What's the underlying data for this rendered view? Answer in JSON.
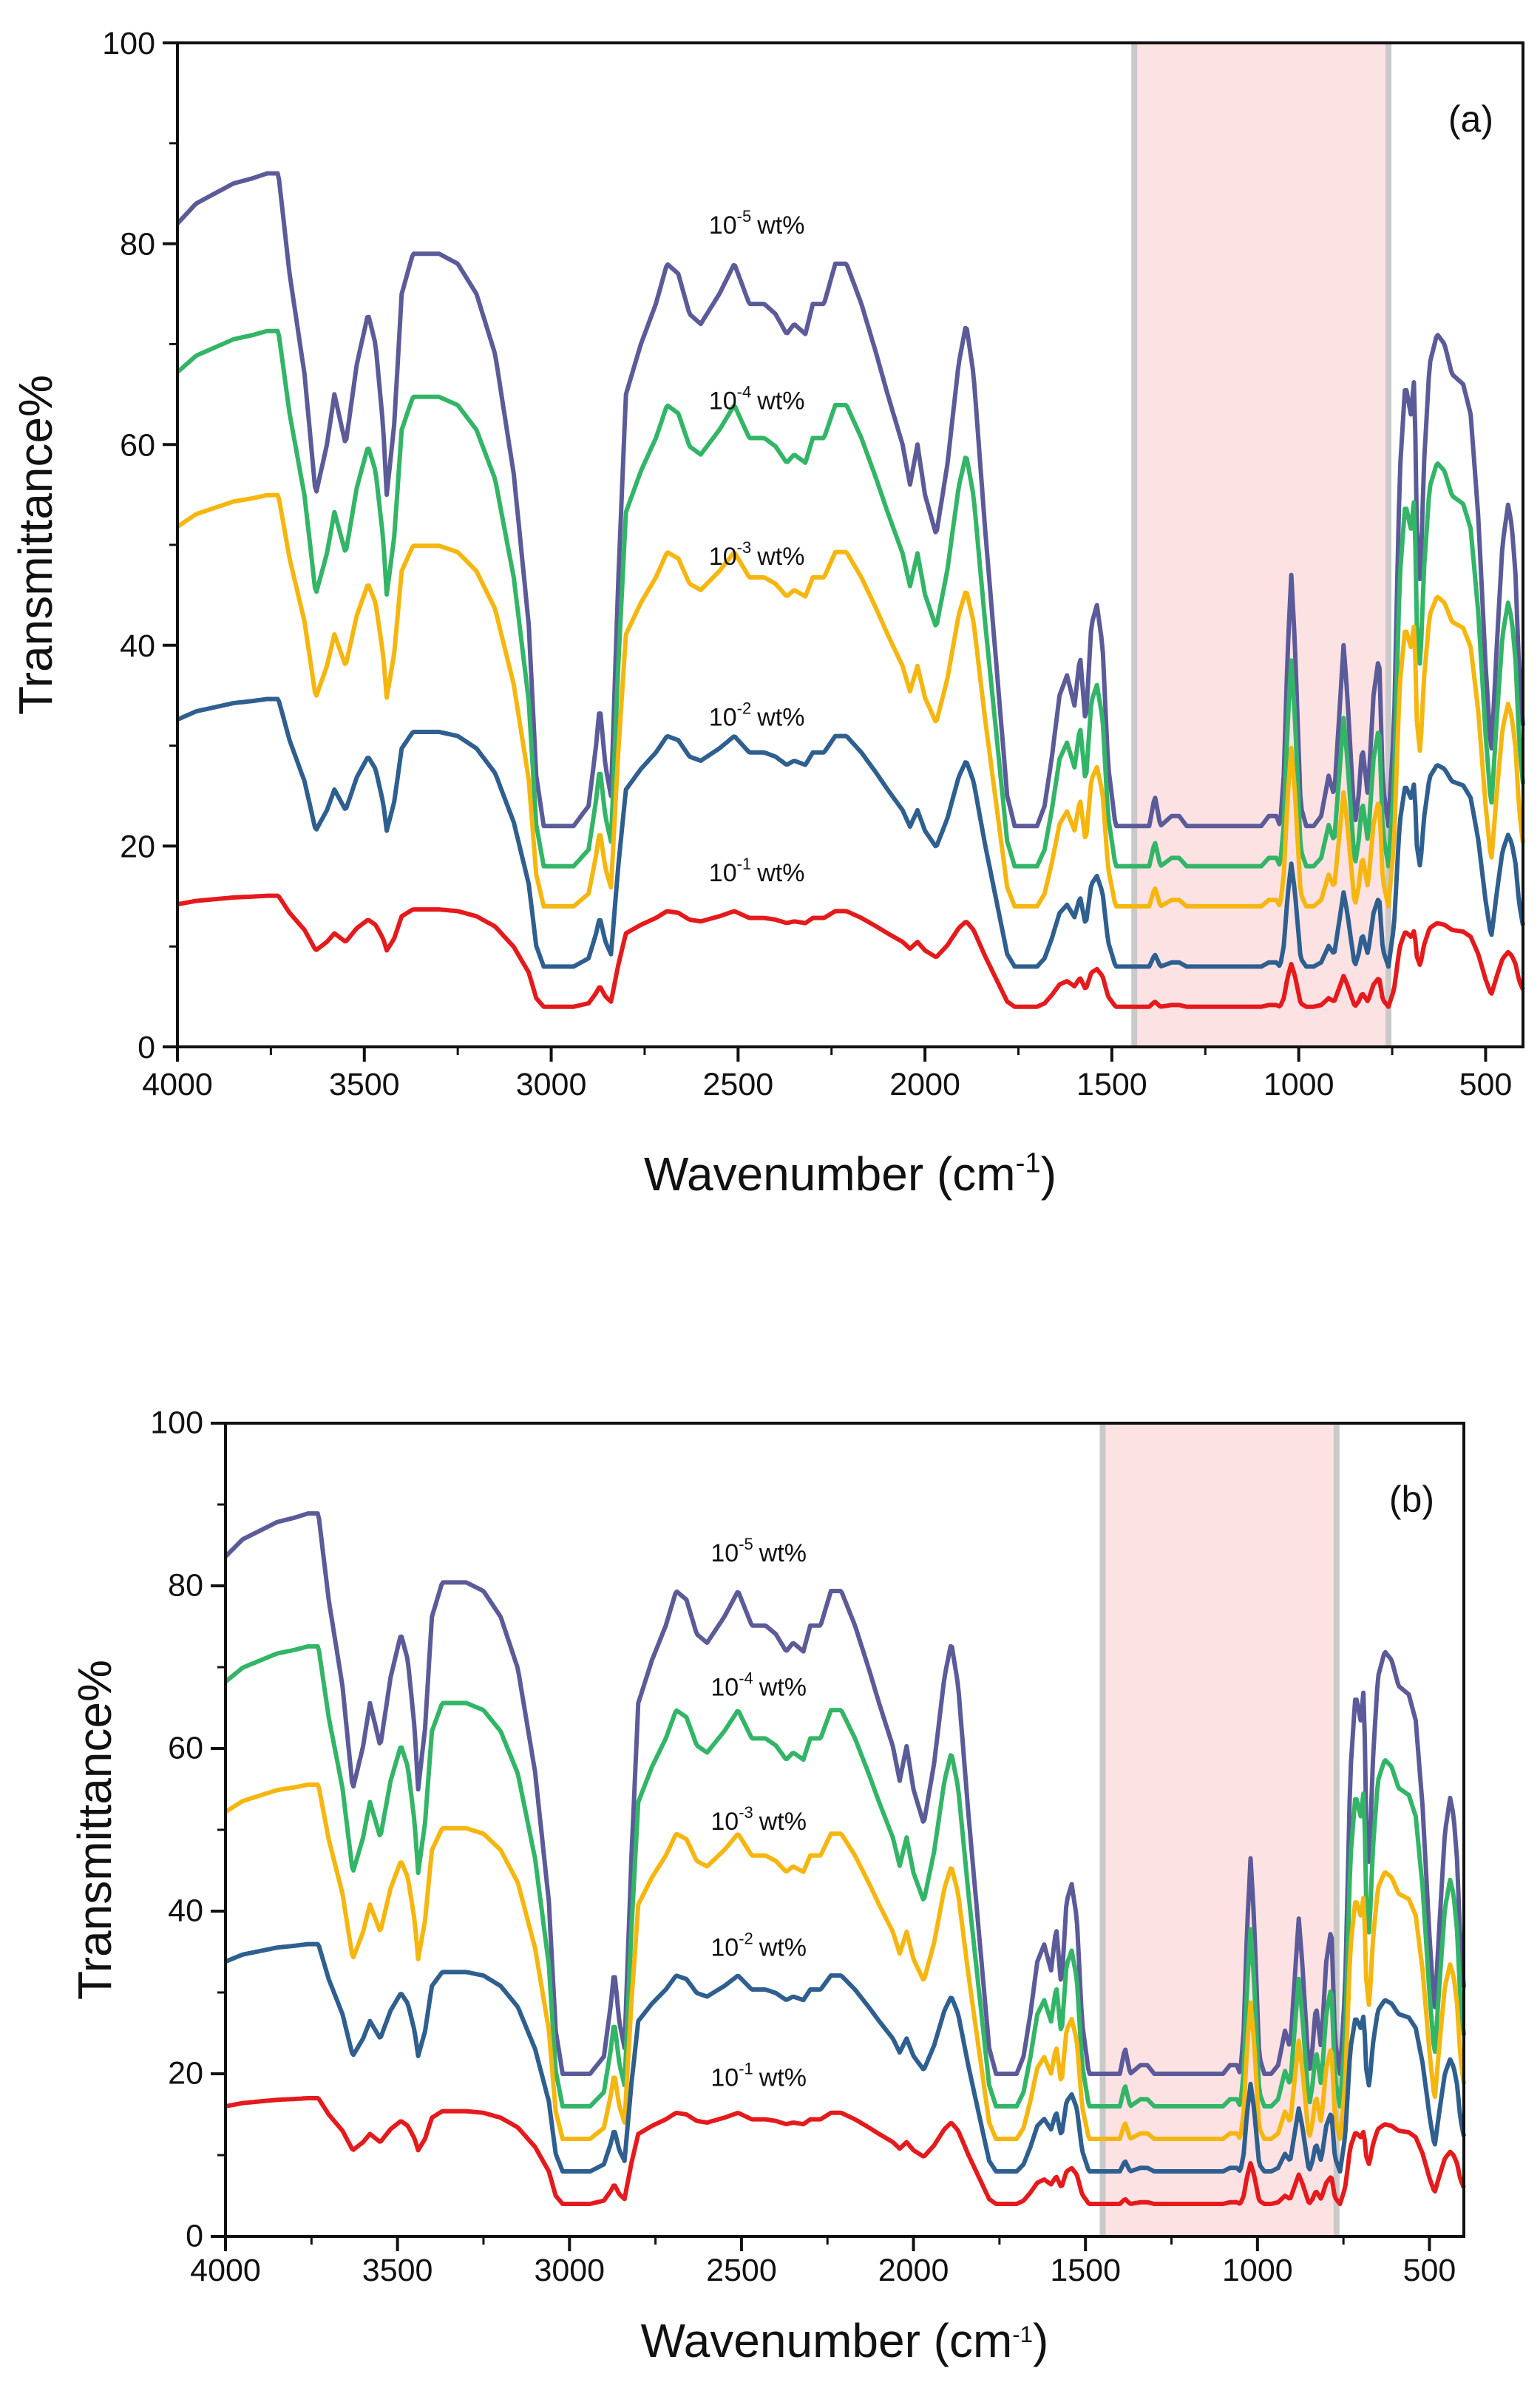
{
  "chart_data": [
    {
      "type": "line",
      "panel_label": "(a)",
      "xlabel": "Wavenumber (cm",
      "xlabel_sup": "-1",
      "xlabel_suffix": ")",
      "ylabel": "Transmittance%",
      "xlim": [
        4000,
        400
      ],
      "ylim": [
        0,
        100
      ],
      "xticks": [
        4000,
        3500,
        3000,
        2500,
        2000,
        1500,
        1000,
        500
      ],
      "yticks": [
        0,
        20,
        40,
        60,
        80,
        100
      ],
      "highlight_range": [
        1440,
        760
      ],
      "highlight_color": "#fde2e4",
      "grid": false,
      "series": [
        {
          "name": "10-5 wt%",
          "base": "10",
          "exp": "-5",
          "unit": "wt%",
          "offset": 22,
          "scale": 1.0,
          "color": "#5b5b99",
          "label_x": 2450,
          "label_y": 81
        },
        {
          "name": "10-4 wt%",
          "base": "10",
          "exp": "-4",
          "unit": "wt%",
          "offset": 18,
          "scale": 0.82,
          "color": "#33b567",
          "label_x": 2450,
          "label_y": 63.5
        },
        {
          "name": "10-3 wt%",
          "base": "10",
          "exp": "-3",
          "unit": "wt%",
          "offset": 14,
          "scale": 0.63,
          "color": "#f5b60f",
          "label_x": 2450,
          "label_y": 48
        },
        {
          "name": "10-2 wt%",
          "base": "10",
          "exp": "-2",
          "unit": "wt%",
          "offset": 8,
          "scale": 0.41,
          "color": "#2e5f8f",
          "label_x": 2450,
          "label_y": 32
        },
        {
          "name": "10-1 wt%",
          "base": "10",
          "exp": "-1",
          "unit": "wt%",
          "offset": 4,
          "scale": 0.17,
          "color": "#e41a1c",
          "label_x": 2450,
          "label_y": 16.5
        }
      ]
    },
    {
      "type": "line",
      "panel_label": "(b)",
      "xlabel": "Wavenumber (cm",
      "xlabel_sup": "-1",
      "xlabel_suffix": ")",
      "ylabel": "Transmittance%",
      "xlim": [
        4000,
        400
      ],
      "ylim": [
        0,
        100
      ],
      "xticks": [
        4000,
        3500,
        3000,
        2500,
        2000,
        1500,
        1000,
        500
      ],
      "yticks": [
        0,
        20,
        40,
        60,
        80,
        100
      ],
      "highlight_range": [
        1450,
        770
      ],
      "highlight_color": "#fde2e4",
      "grid": false,
      "series": [
        {
          "name": "10-5 wt%",
          "base": "10",
          "exp": "-5",
          "unit": "wt%",
          "offset": 20,
          "scale": 1.06,
          "color": "#5b5b99",
          "label_x": 2450,
          "label_y": 83
        },
        {
          "name": "10-4 wt%",
          "base": "10",
          "exp": "-4",
          "unit": "wt%",
          "offset": 16,
          "scale": 0.87,
          "color": "#33b567",
          "label_x": 2450,
          "label_y": 66.5
        },
        {
          "name": "10-3 wt%",
          "base": "10",
          "exp": "-3",
          "unit": "wt%",
          "offset": 12,
          "scale": 0.67,
          "color": "#f5b60f",
          "label_x": 2450,
          "label_y": 50
        },
        {
          "name": "10-2 wt%",
          "base": "10",
          "exp": "-2",
          "unit": "wt%",
          "offset": 8,
          "scale": 0.43,
          "color": "#2e5f8f",
          "label_x": 2450,
          "label_y": 34.5
        },
        {
          "name": "10-1 wt%",
          "base": "10",
          "exp": "-1",
          "unit": "wt%",
          "offset": 4,
          "scale": 0.2,
          "color": "#e41a1c",
          "label_x": 2450,
          "label_y": 18.5
        }
      ]
    }
  ],
  "spectrum_profile": [
    [
      4000,
      60
    ],
    [
      3950,
      62
    ],
    [
      3900,
      63
    ],
    [
      3850,
      64
    ],
    [
      3800,
      64.5
    ],
    [
      3760,
      65
    ],
    [
      3730,
      65
    ],
    [
      3700,
      55
    ],
    [
      3660,
      45
    ],
    [
      3630,
      33
    ],
    [
      3600,
      38
    ],
    [
      3580,
      43
    ],
    [
      3550,
      38
    ],
    [
      3520,
      46
    ],
    [
      3490,
      51
    ],
    [
      3470,
      48
    ],
    [
      3450,
      40
    ],
    [
      3440,
      33
    ],
    [
      3420,
      40
    ],
    [
      3400,
      53
    ],
    [
      3370,
      57
    ],
    [
      3300,
      57
    ],
    [
      3250,
      56
    ],
    [
      3200,
      53
    ],
    [
      3150,
      47
    ],
    [
      3100,
      35
    ],
    [
      3060,
      20
    ],
    [
      3040,
      5
    ],
    [
      3020,
      0
    ],
    [
      2980,
      0
    ],
    [
      2940,
      0
    ],
    [
      2900,
      2
    ],
    [
      2880,
      8
    ],
    [
      2870,
      12
    ],
    [
      2855,
      6
    ],
    [
      2840,
      3
    ],
    [
      2820,
      25
    ],
    [
      2800,
      43
    ],
    [
      2760,
      48
    ],
    [
      2720,
      52
    ],
    [
      2690,
      56
    ],
    [
      2660,
      55
    ],
    [
      2630,
      51
    ],
    [
      2600,
      50
    ],
    [
      2550,
      53
    ],
    [
      2510,
      56
    ],
    [
      2470,
      52
    ],
    [
      2430,
      52
    ],
    [
      2400,
      51
    ],
    [
      2370,
      49
    ],
    [
      2350,
      50
    ],
    [
      2320,
      49
    ],
    [
      2300,
      52
    ],
    [
      2270,
      52
    ],
    [
      2240,
      56
    ],
    [
      2210,
      56
    ],
    [
      2170,
      52
    ],
    [
      2130,
      47
    ],
    [
      2100,
      43
    ],
    [
      2060,
      38
    ],
    [
      2040,
      34
    ],
    [
      2020,
      38
    ],
    [
      2000,
      33
    ],
    [
      1970,
      29
    ],
    [
      1940,
      36
    ],
    [
      1910,
      46
    ],
    [
      1890,
      50
    ],
    [
      1870,
      45
    ],
    [
      1840,
      30
    ],
    [
      1800,
      12
    ],
    [
      1780,
      3
    ],
    [
      1760,
      0
    ],
    [
      1730,
      0
    ],
    [
      1700,
      0
    ],
    [
      1680,
      2
    ],
    [
      1660,
      7
    ],
    [
      1640,
      13
    ],
    [
      1620,
      15
    ],
    [
      1600,
      12
    ],
    [
      1585,
      17
    ],
    [
      1570,
      10
    ],
    [
      1555,
      20
    ],
    [
      1540,
      22
    ],
    [
      1525,
      18
    ],
    [
      1510,
      6
    ],
    [
      1490,
      0
    ],
    [
      1460,
      0
    ],
    [
      1430,
      0
    ],
    [
      1400,
      0
    ],
    [
      1385,
      3
    ],
    [
      1370,
      0
    ],
    [
      1340,
      1
    ],
    [
      1320,
      1
    ],
    [
      1300,
      0
    ],
    [
      1250,
      0
    ],
    [
      1200,
      0
    ],
    [
      1150,
      0
    ],
    [
      1100,
      0
    ],
    [
      1080,
      1
    ],
    [
      1060,
      1
    ],
    [
      1050,
      0
    ],
    [
      1040,
      5
    ],
    [
      1030,
      17
    ],
    [
      1020,
      25
    ],
    [
      1010,
      18
    ],
    [
      995,
      2
    ],
    [
      980,
      0
    ],
    [
      960,
      0
    ],
    [
      940,
      1
    ],
    [
      920,
      5
    ],
    [
      905,
      3
    ],
    [
      890,
      12
    ],
    [
      880,
      18
    ],
    [
      870,
      13
    ],
    [
      850,
      0
    ],
    [
      840,
      3
    ],
    [
      830,
      8
    ],
    [
      815,
      3
    ],
    [
      800,
      13
    ],
    [
      785,
      17
    ],
    [
      775,
      4
    ],
    [
      760,
      0
    ],
    [
      745,
      10
    ],
    [
      730,
      35
    ],
    [
      715,
      44
    ],
    [
      700,
      41
    ],
    [
      690,
      45
    ],
    [
      685,
      30
    ],
    [
      675,
      24
    ],
    [
      665,
      36
    ],
    [
      650,
      46
    ],
    [
      630,
      49
    ],
    [
      610,
      48
    ],
    [
      590,
      45
    ],
    [
      560,
      44
    ],
    [
      540,
      41
    ],
    [
      520,
      31
    ],
    [
      500,
      16
    ],
    [
      485,
      7
    ],
    [
      470,
      18
    ],
    [
      455,
      28
    ],
    [
      440,
      32
    ],
    [
      430,
      30
    ],
    [
      420,
      25
    ],
    [
      410,
      15
    ],
    [
      400,
      10
    ]
  ]
}
